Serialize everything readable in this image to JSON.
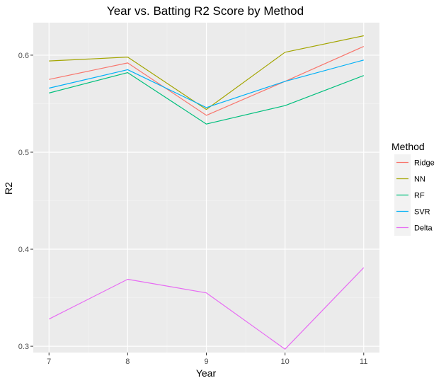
{
  "chart_data": {
    "type": "line",
    "title": "Year vs. Batting R2 Score by Method",
    "xlabel": "Year",
    "ylabel": "R2",
    "x": [
      7,
      8,
      9,
      10,
      11
    ],
    "xlim": [
      6.8,
      11.2
    ],
    "ylim": [
      0.2935,
      0.6335
    ],
    "xticks": [
      7,
      8,
      9,
      10,
      11
    ],
    "yticks": [
      0.3,
      0.4,
      0.5,
      0.6
    ],
    "ytick_labels": [
      "0.3",
      "0.4",
      "0.5",
      "0.6"
    ],
    "grid": true,
    "legend_title": "Method",
    "legend_position": "right",
    "series": [
      {
        "name": "Ridge",
        "color": "#F8766D",
        "values": [
          0.575,
          0.592,
          0.538,
          0.573,
          0.609
        ]
      },
      {
        "name": "NN",
        "color": "#A3A500",
        "values": [
          0.594,
          0.598,
          0.544,
          0.603,
          0.62
        ]
      },
      {
        "name": "RF",
        "color": "#00BF7D",
        "values": [
          0.561,
          0.582,
          0.529,
          0.548,
          0.579
        ]
      },
      {
        "name": "SVR",
        "color": "#00B0F6",
        "values": [
          0.566,
          0.585,
          0.546,
          0.573,
          0.595
        ]
      },
      {
        "name": "Delta",
        "color": "#E76BF3",
        "values": [
          0.328,
          0.369,
          0.355,
          0.297,
          0.381
        ]
      }
    ]
  }
}
